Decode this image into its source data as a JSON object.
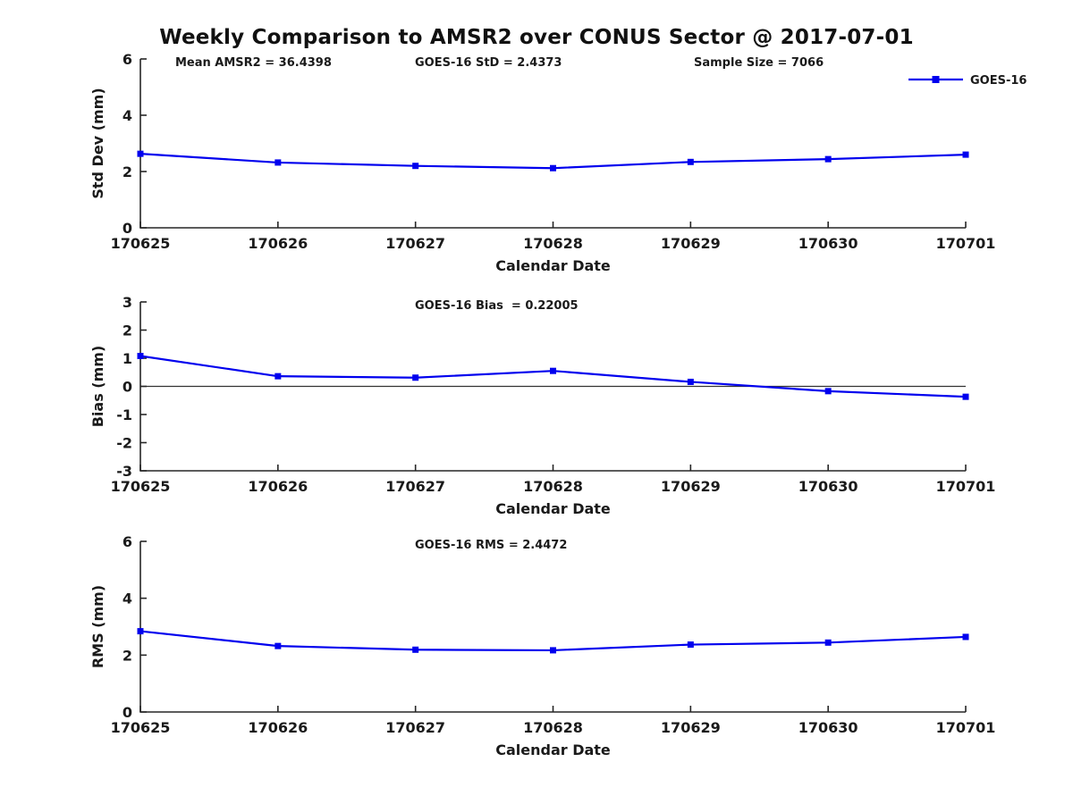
{
  "figure": {
    "title": "Weekly Comparison to AMSR2 over CONUS Sector @ 2017-07-01",
    "series_color": "#0000ee",
    "axis_color": "#262626",
    "text_color": "#1a1a1a",
    "legend": {
      "label": "GOES-16",
      "marker": "square-icon"
    }
  },
  "chart_data": [
    {
      "type": "line",
      "name": "std-dev",
      "series": [
        {
          "name": "GOES-16",
          "values": [
            2.63,
            2.32,
            2.2,
            2.12,
            2.34,
            2.44,
            2.6
          ]
        }
      ],
      "categories": [
        "170625",
        "170626",
        "170627",
        "170628",
        "170629",
        "170630",
        "170701"
      ],
      "xlabel": "Calendar Date",
      "ylabel": "Std Dev (mm)",
      "ylim": [
        0,
        6
      ],
      "yticks": [
        0,
        2,
        4,
        6
      ],
      "grid": false,
      "zero_line": false,
      "legend_position": "top-right",
      "annotations": [
        "Mean AMSR2 = 36.4398",
        "GOES-16 StD = 2.4373",
        "Sample Size = 7066"
      ]
    },
    {
      "type": "line",
      "name": "bias",
      "series": [
        {
          "name": "GOES-16",
          "values": [
            1.08,
            0.36,
            0.31,
            0.55,
            0.16,
            -0.17,
            -0.37
          ]
        }
      ],
      "categories": [
        "170625",
        "170626",
        "170627",
        "170628",
        "170629",
        "170630",
        "170701"
      ],
      "xlabel": "Calendar Date",
      "ylabel": "Bias (mm)",
      "ylim": [
        -3,
        3
      ],
      "yticks": [
        -3,
        -2,
        -1,
        0,
        1,
        2,
        3
      ],
      "grid": false,
      "zero_line": true,
      "legend_position": "none",
      "annotations": [
        "GOES-16 Bias  = 0.22005"
      ]
    },
    {
      "type": "line",
      "name": "rms",
      "series": [
        {
          "name": "GOES-16",
          "values": [
            2.84,
            2.32,
            2.19,
            2.17,
            2.37,
            2.44,
            2.64
          ]
        }
      ],
      "categories": [
        "170625",
        "170626",
        "170627",
        "170628",
        "170629",
        "170630",
        "170701"
      ],
      "xlabel": "Calendar Date",
      "ylabel": "RMS (mm)",
      "ylim": [
        0,
        6
      ],
      "yticks": [
        0,
        2,
        4,
        6
      ],
      "grid": false,
      "zero_line": false,
      "legend_position": "none",
      "annotations": [
        "GOES-16 RMS = 2.4472"
      ]
    }
  ]
}
